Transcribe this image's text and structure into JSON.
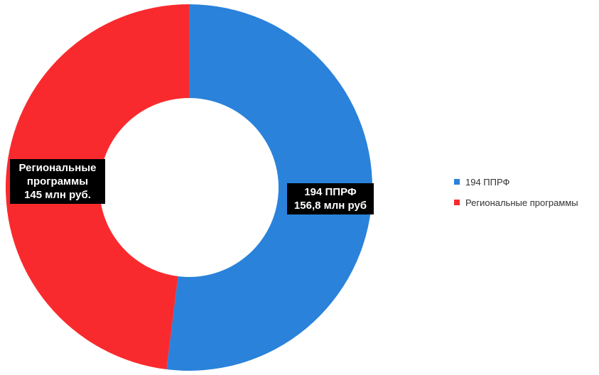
{
  "chart_data": {
    "type": "pie",
    "donut": true,
    "title": "",
    "categories": [
      "194 ППРФ",
      "Региональные программы"
    ],
    "values": [
      156.8,
      145
    ],
    "colors": [
      "#2a82da",
      "#f92a2e"
    ],
    "data_labels": [
      "194 ППРФ\n156,8 млн руб",
      "Региональные\nпрограммы\n145 млн руб."
    ],
    "legend": {
      "position": "right",
      "entries": [
        "194 ППРФ",
        "Региональные программы"
      ]
    }
  }
}
